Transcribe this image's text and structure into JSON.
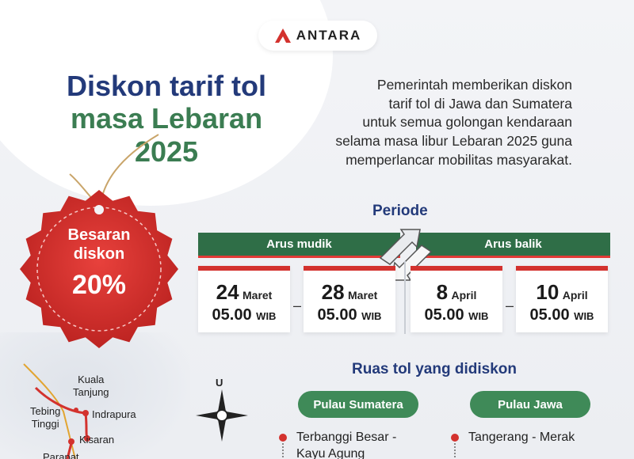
{
  "logo": {
    "text": "ANTARA"
  },
  "title": {
    "line1": "Diskon tarif tol",
    "line2": "masa Lebaran",
    "line3": "2025"
  },
  "description": [
    "Pemerintah memberikan diskon",
    "tarif tol di Jawa dan Sumatera",
    "untuk semua golongan kendaraan",
    "selama masa libur Lebaran 2025 guna",
    "memperlancar mobilitas masyarakat."
  ],
  "badge": {
    "line1": "Besaran",
    "line2": "diskon",
    "value": "20%"
  },
  "periode": {
    "heading": "Periode",
    "arus_mudik": "Arus mudik",
    "arus_balik": "Arus balik",
    "dates": [
      {
        "day": "24",
        "month": "Maret",
        "time": "05.00",
        "zone": "WIB"
      },
      {
        "day": "28",
        "month": "Maret",
        "time": "05.00",
        "zone": "WIB"
      },
      {
        "day": "8",
        "month": "April",
        "time": "05.00",
        "zone": "WIB"
      },
      {
        "day": "10",
        "month": "April",
        "time": "05.00",
        "zone": "WIB"
      }
    ],
    "separator": "–"
  },
  "ruas": {
    "heading": "Ruas tol yang didiskon",
    "sumatera": {
      "label": "Pulau Sumatera",
      "routes": [
        "Terbanggi Besar -",
        "Kayu Agung"
      ]
    },
    "jawa": {
      "label": "Pulau Jawa",
      "routes": [
        "Tangerang - Merak"
      ]
    }
  },
  "map": {
    "compass": "U",
    "labels": {
      "kuala": "Kuala",
      "tanjung": "Tanjung",
      "tebing": "Tebing",
      "tinggi": "Tinggi",
      "indrapura": "Indrapura",
      "kisaran": "Kisaran",
      "parapat": "Parapat"
    }
  },
  "colors": {
    "navy": "#233a7a",
    "green": "#3b7d52",
    "red": "#d3322e",
    "dark_green": "#2f6e47"
  }
}
